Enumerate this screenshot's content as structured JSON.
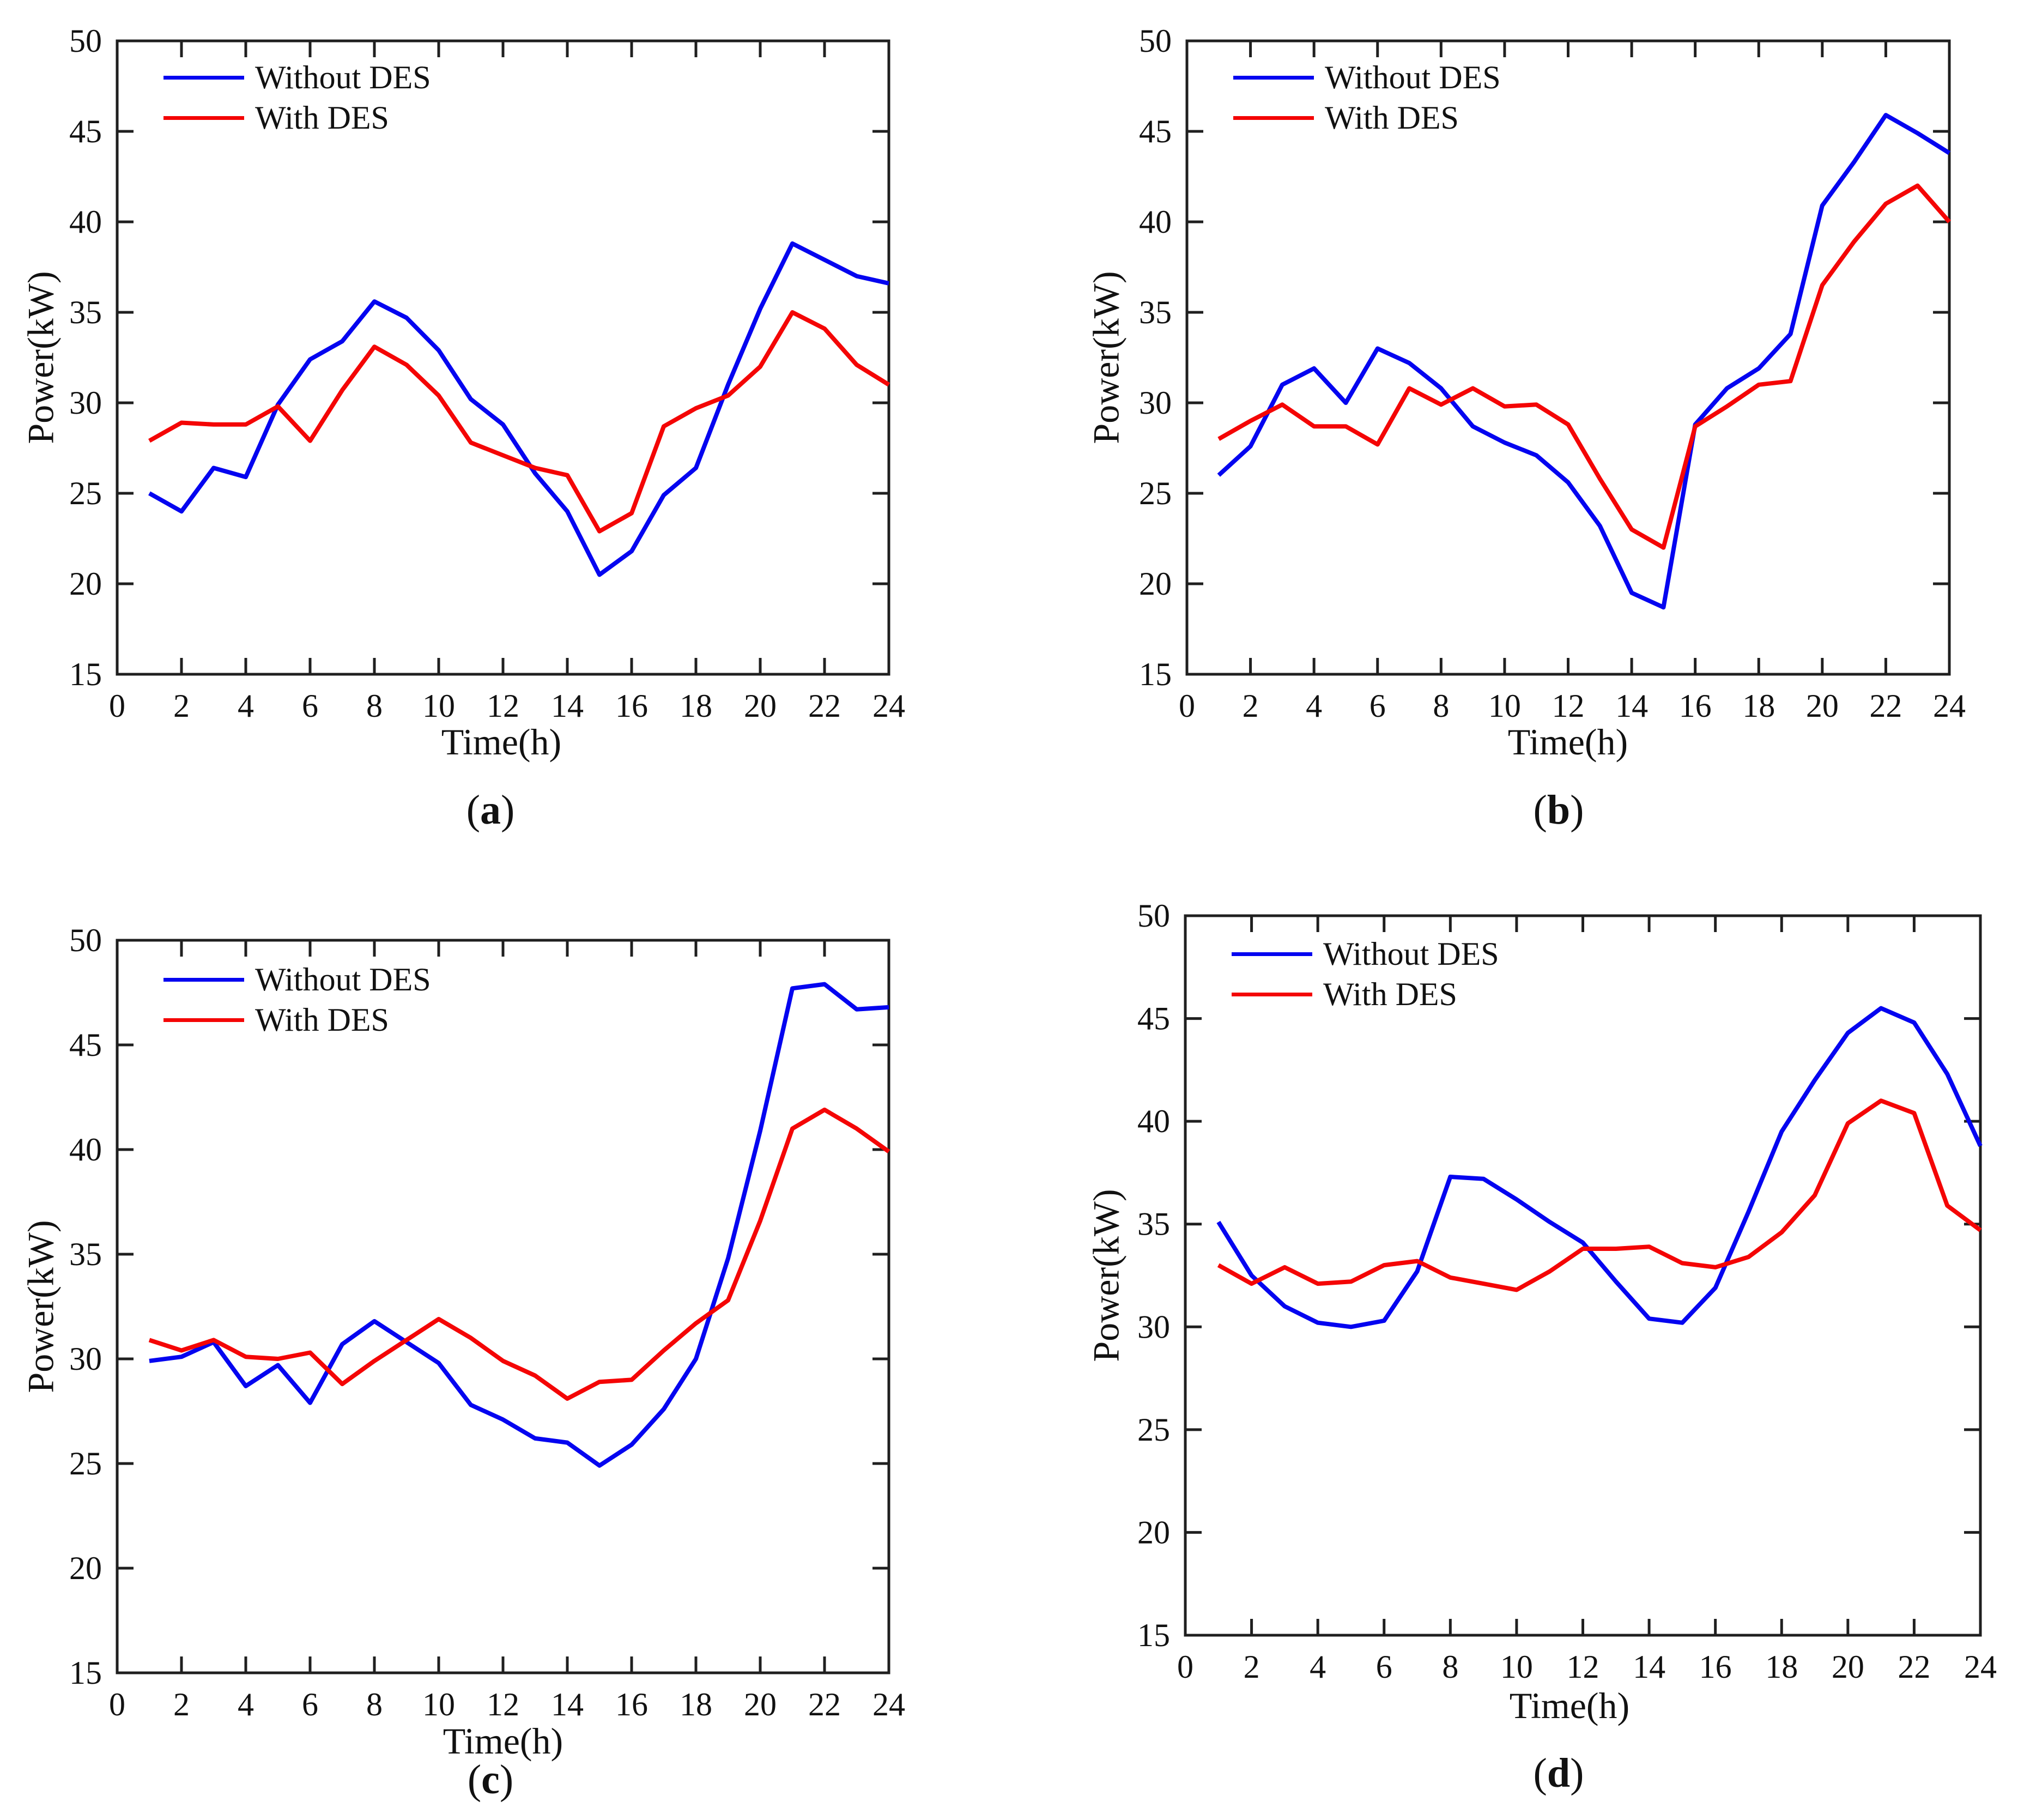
{
  "figure": {
    "background": "#ffffff",
    "xlabel": "Time(h)",
    "ylabel": "Power(kW)",
    "axis_color": "#1f1f1f",
    "legend_labels": [
      "Without DES",
      "With DES"
    ],
    "series_colors": {
      "without_des": "#0404f0",
      "with_des": "#f40505"
    }
  },
  "chart_data": [
    {
      "type": "line",
      "panel": "a",
      "caption": {
        "pre": "(",
        "letter": "a",
        "post": ")"
      },
      "xlabel": "Time(h)",
      "ylabel": "Power(kW)",
      "xlim": [
        0,
        24
      ],
      "ylim": [
        15,
        50
      ],
      "xticks": [
        0,
        2,
        4,
        6,
        8,
        10,
        12,
        14,
        16,
        18,
        20,
        22,
        24
      ],
      "yticks": [
        15,
        20,
        25,
        30,
        35,
        40,
        45,
        50
      ],
      "grid": false,
      "legend_position": "top-left",
      "x": [
        1,
        2,
        3,
        4,
        5,
        6,
        7,
        8,
        9,
        10,
        11,
        12,
        13,
        14,
        15,
        16,
        17,
        18,
        19,
        20,
        21,
        22,
        23,
        24
      ],
      "series": [
        {
          "name": "Without DES",
          "color": "#0404f0",
          "values": [
            25.0,
            24.0,
            26.4,
            25.9,
            29.9,
            32.4,
            33.4,
            35.6,
            34.7,
            32.9,
            30.2,
            28.8,
            26.1,
            24.0,
            20.5,
            21.8,
            24.9,
            26.4,
            31.0,
            35.2,
            38.8,
            37.9,
            37.0,
            36.6
          ]
        },
        {
          "name": "With DES",
          "color": "#f40505",
          "values": [
            27.9,
            28.9,
            28.8,
            28.8,
            29.8,
            27.9,
            30.7,
            33.1,
            32.1,
            30.4,
            27.8,
            27.1,
            26.4,
            26.0,
            22.9,
            23.9,
            28.7,
            29.7,
            30.4,
            32.0,
            35.0,
            34.1,
            32.1,
            31.0
          ]
        }
      ]
    },
    {
      "type": "line",
      "panel": "b",
      "caption": {
        "pre": "(",
        "letter": "b",
        "post": ")"
      },
      "xlabel": "Time(h)",
      "ylabel": "Power(kW)",
      "xlim": [
        0,
        24
      ],
      "ylim": [
        15,
        50
      ],
      "xticks": [
        0,
        2,
        4,
        6,
        8,
        10,
        12,
        14,
        16,
        18,
        20,
        22,
        24
      ],
      "yticks": [
        15,
        20,
        25,
        30,
        35,
        40,
        45,
        50
      ],
      "grid": false,
      "legend_position": "top-left",
      "x": [
        1,
        2,
        3,
        4,
        5,
        6,
        7,
        8,
        9,
        10,
        11,
        12,
        13,
        14,
        15,
        16,
        17,
        18,
        19,
        20,
        21,
        22,
        23,
        24
      ],
      "series": [
        {
          "name": "Without DES",
          "color": "#0404f0",
          "values": [
            26.0,
            27.6,
            31.0,
            31.9,
            30.0,
            33.0,
            32.2,
            30.8,
            28.7,
            27.8,
            27.1,
            25.6,
            23.2,
            19.5,
            18.7,
            28.8,
            30.8,
            31.9,
            33.8,
            40.9,
            43.3,
            45.9,
            44.9,
            43.8
          ]
        },
        {
          "name": "With DES",
          "color": "#f40505",
          "values": [
            28.0,
            29.0,
            29.9,
            28.7,
            28.7,
            27.7,
            30.8,
            29.9,
            30.8,
            29.8,
            29.9,
            28.8,
            25.8,
            23.0,
            22.0,
            28.7,
            29.8,
            31.0,
            31.2,
            36.5,
            38.9,
            41.0,
            42.0,
            40.0
          ]
        }
      ]
    },
    {
      "type": "line",
      "panel": "c",
      "caption": {
        "pre": "(",
        "letter": "c",
        "post": ")"
      },
      "xlabel": "Time(h)",
      "ylabel": "Power(kW)",
      "xlim": [
        0,
        24
      ],
      "ylim": [
        15,
        50
      ],
      "xticks": [
        0,
        2,
        4,
        6,
        8,
        10,
        12,
        14,
        16,
        18,
        20,
        22,
        24
      ],
      "yticks": [
        15,
        20,
        25,
        30,
        35,
        40,
        45,
        50
      ],
      "grid": false,
      "legend_position": "top-left",
      "x": [
        1,
        2,
        3,
        4,
        5,
        6,
        7,
        8,
        9,
        10,
        11,
        12,
        13,
        14,
        15,
        16,
        17,
        18,
        19,
        20,
        21,
        22,
        23,
        24
      ],
      "series": [
        {
          "name": "Without DES",
          "color": "#0404f0",
          "values": [
            29.9,
            30.1,
            30.8,
            28.7,
            29.7,
            27.9,
            30.7,
            31.8,
            30.8,
            29.8,
            27.8,
            27.1,
            26.2,
            26.0,
            24.9,
            25.9,
            27.6,
            30.0,
            34.8,
            40.9,
            47.7,
            47.9,
            46.7,
            46.8
          ]
        },
        {
          "name": "With DES",
          "color": "#f40505",
          "values": [
            30.9,
            30.4,
            30.9,
            30.1,
            30.0,
            30.3,
            28.8,
            29.9,
            30.9,
            31.9,
            31.0,
            29.9,
            29.2,
            28.1,
            28.9,
            29.0,
            30.4,
            31.7,
            32.8,
            36.6,
            41.0,
            41.9,
            41.0,
            39.9
          ]
        }
      ]
    },
    {
      "type": "line",
      "panel": "d",
      "caption": {
        "pre": "(",
        "letter": "d",
        "post": ")"
      },
      "xlabel": "Time(h)",
      "ylabel": "Power(kW)",
      "xlim": [
        0,
        24
      ],
      "ylim": [
        15,
        50
      ],
      "xticks": [
        0,
        2,
        4,
        6,
        8,
        10,
        12,
        14,
        16,
        18,
        20,
        22,
        24
      ],
      "yticks": [
        15,
        20,
        25,
        30,
        35,
        40,
        45,
        50
      ],
      "grid": false,
      "legend_position": "top-left",
      "x": [
        1,
        2,
        3,
        4,
        5,
        6,
        7,
        8,
        9,
        10,
        11,
        12,
        13,
        14,
        15,
        16,
        17,
        18,
        19,
        20,
        21,
        22,
        23,
        24
      ],
      "series": [
        {
          "name": "Without DES",
          "color": "#0404f0",
          "values": [
            35.1,
            32.5,
            31.0,
            30.2,
            30.0,
            30.3,
            32.7,
            37.3,
            37.2,
            36.2,
            35.1,
            34.1,
            32.2,
            30.4,
            30.2,
            31.9,
            35.6,
            39.5,
            42.0,
            44.3,
            45.5,
            44.8,
            42.3,
            38.8
          ]
        },
        {
          "name": "With DES",
          "color": "#f40505",
          "values": [
            33.0,
            32.1,
            32.9,
            32.1,
            32.2,
            33.0,
            33.2,
            32.4,
            32.1,
            31.8,
            32.7,
            33.8,
            33.8,
            33.9,
            33.1,
            32.9,
            33.4,
            34.6,
            36.4,
            39.9,
            41.0,
            40.4,
            35.9,
            34.7
          ]
        }
      ]
    }
  ]
}
